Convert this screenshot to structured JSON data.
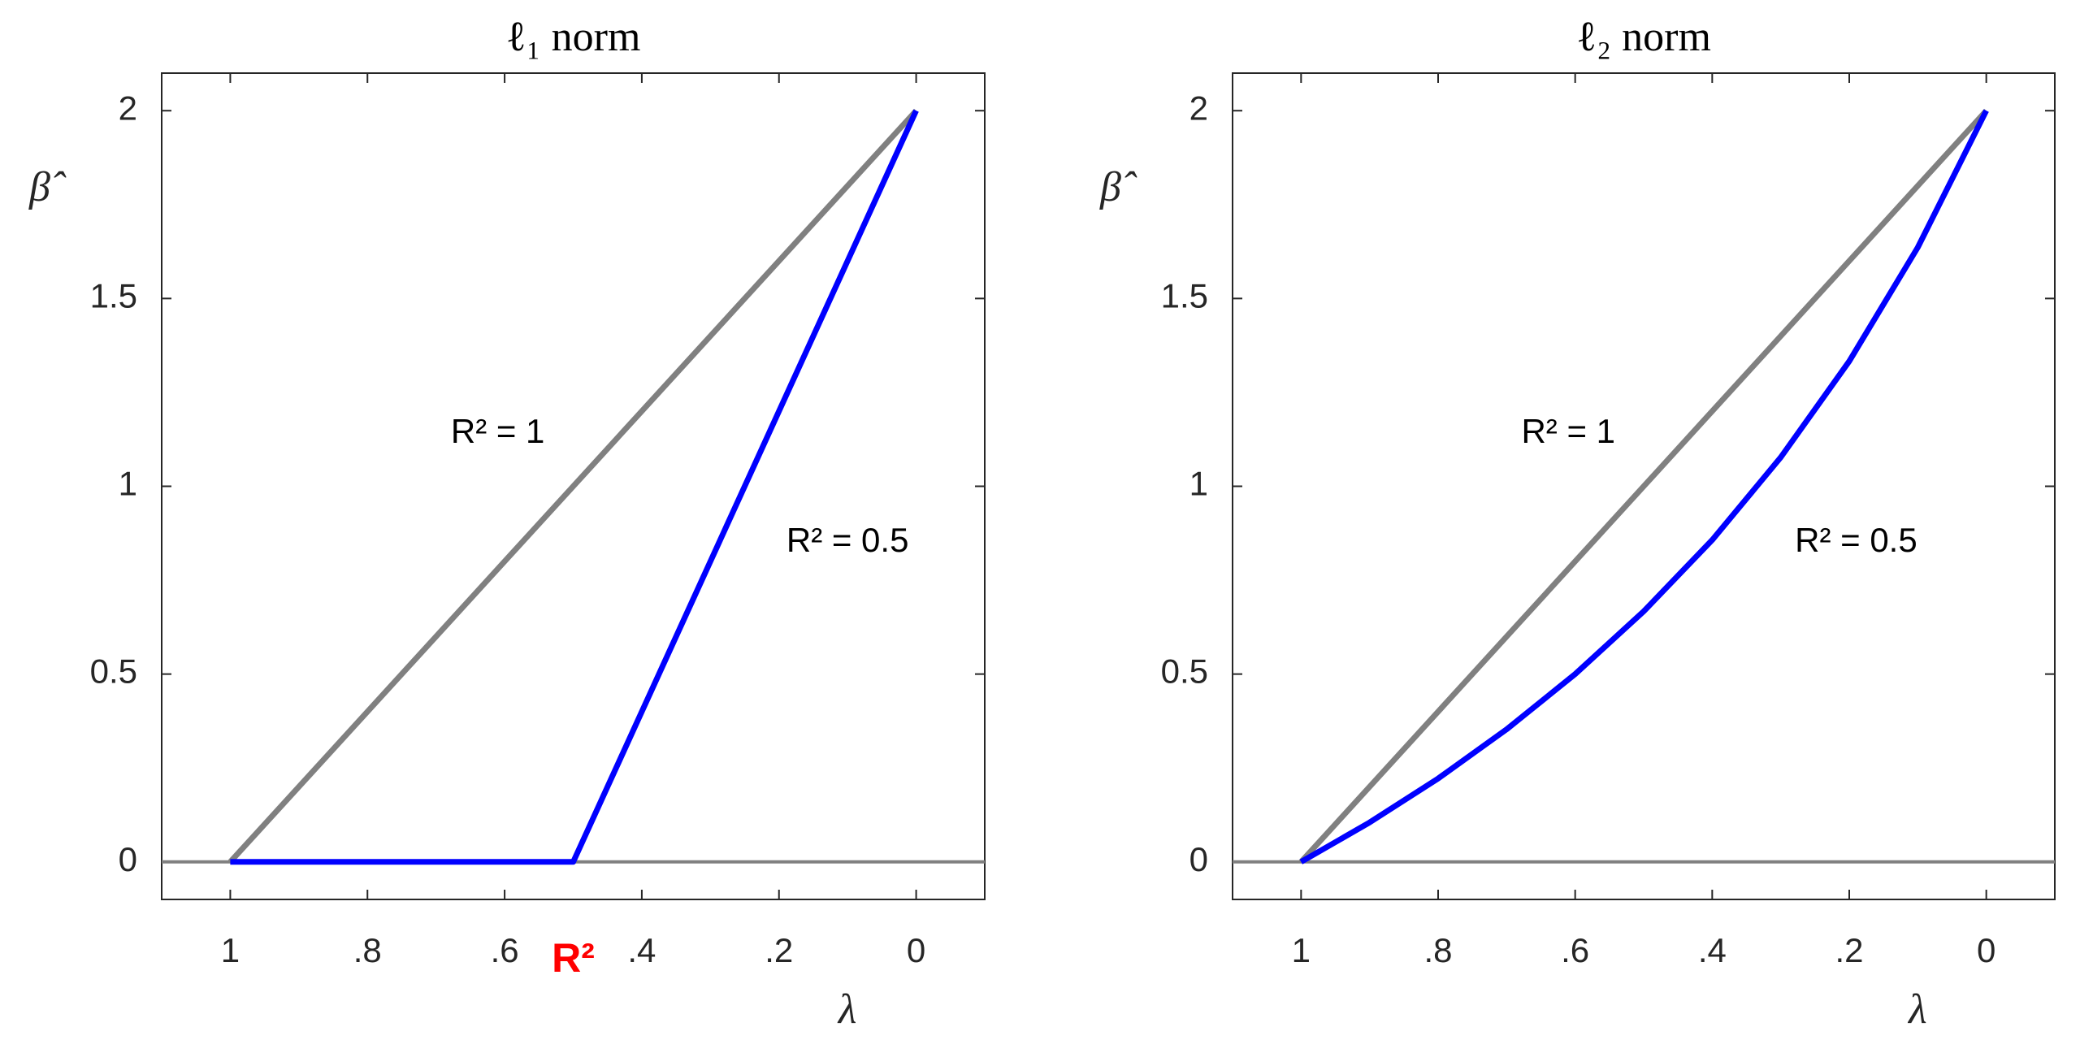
{
  "chart_data": [
    {
      "type": "line",
      "title": "ℓ₁ norm",
      "xlabel": "λ",
      "ylabel": "β̂",
      "xlim": [
        1.1,
        -0.1
      ],
      "ylim": [
        -0.1,
        2.1
      ],
      "xticks": [
        1,
        {
          "value": 0.8,
          "label": ".8"
        },
        {
          "value": 0.6,
          "label": ".6"
        },
        {
          "value": 0.4,
          "label": ".4"
        },
        {
          "value": 0.2,
          "label": ".2"
        },
        0
      ],
      "yticks": [
        0,
        0.5,
        1,
        1.5,
        2
      ],
      "hline": 0,
      "hline_color": "#808080",
      "series": [
        {
          "name": "R² = 1",
          "color": "#808080",
          "x": [
            1,
            0
          ],
          "values": [
            0,
            2
          ]
        },
        {
          "name": "R² = 0.5",
          "color": "#0000ff",
          "x": [
            1,
            0.5,
            0
          ],
          "values": [
            0,
            0,
            2
          ]
        }
      ],
      "annotations": [
        {
          "text": "R²",
          "x": 0.5,
          "color": "#ff0000"
        }
      ]
    },
    {
      "type": "line",
      "title": "ℓ₂ norm",
      "xlabel": "λ",
      "ylabel": "β̂",
      "xlim": [
        1.1,
        -0.1
      ],
      "ylim": [
        -0.1,
        2.1
      ],
      "xticks": [
        1,
        {
          "value": 0.8,
          "label": ".8"
        },
        {
          "value": 0.6,
          "label": ".6"
        },
        {
          "value": 0.4,
          "label": ".4"
        },
        {
          "value": 0.2,
          "label": ".2"
        },
        0
      ],
      "yticks": [
        0,
        0.5,
        1,
        1.5,
        2
      ],
      "hline": 0,
      "hline_color": "#808080",
      "series": [
        {
          "name": "R² = 1",
          "color": "#808080",
          "x": [
            1,
            0
          ],
          "values": [
            0,
            2
          ]
        },
        {
          "name": "R² = 0.5",
          "color": "#0000ff",
          "x": [
            1,
            0.9,
            0.8,
            0.7,
            0.6,
            0.5,
            0.4,
            0.3,
            0.2,
            0.1,
            0
          ],
          "values": [
            0,
            0.105,
            0.222,
            0.353,
            0.5,
            0.667,
            0.857,
            1.077,
            1.333,
            1.636,
            2
          ]
        }
      ]
    }
  ]
}
